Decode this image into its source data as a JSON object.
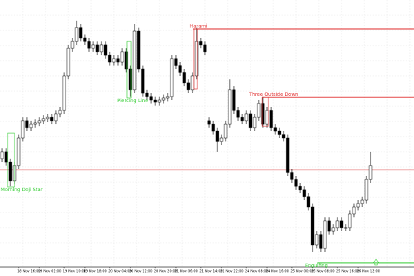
{
  "chart_data": {
    "type": "candlestick",
    "ylim": [
      0,
      385
    ],
    "grid": true,
    "candle_color": "#000000",
    "categories": [
      null,
      null,
      null,
      null,
      "18 Nov 16:00",
      null,
      null,
      null,
      null,
      "19 Nov 02:00",
      null,
      null,
      null,
      null,
      null,
      "19 Nov 10:00",
      null,
      null,
      null,
      null,
      "19 Nov 18:00",
      null,
      null,
      null,
      null,
      null,
      "20 Nov 04:00",
      null,
      null,
      null,
      null,
      "20 Nov 12:00",
      null,
      null,
      null,
      null,
      null,
      "20 Nov 20:00",
      null,
      null,
      null,
      null,
      "21 Nov 06:00",
      null,
      null,
      null,
      null,
      null,
      "21 Nov 14:00",
      null,
      null,
      null,
      null,
      "21 Nov 22:00",
      null,
      null,
      null,
      null,
      null,
      "24 Nov 08:00",
      null,
      null,
      null,
      null,
      "24 Nov 16:00",
      null,
      null,
      null,
      null,
      null,
      "25 Nov 00:00",
      null,
      null,
      null,
      null,
      "25 Nov 08:00",
      null,
      null,
      null,
      null,
      null,
      "25 Nov 16:00",
      null,
      null,
      null,
      null,
      "26 Nov 12:00",
      null,
      null,
      null
    ],
    "open": [
      155,
      165,
      150,
      123,
      145,
      185,
      210,
      200,
      205,
      207,
      210,
      213,
      215,
      210,
      220,
      225,
      275,
      315,
      325,
      345,
      330,
      325,
      315,
      320,
      310,
      320,
      305,
      295,
      300,
      295,
      310,
      285,
      255,
      340,
      285,
      250,
      245,
      240,
      237,
      240,
      243,
      245,
      300,
      290,
      280,
      265,
      255,
      275,
      325,
      320,
      210,
      205,
      195,
      180,
      185,
      205,
      255,
      225,
      215,
      210,
      220,
      200,
      215,
      235,
      205,
      225,
      200,
      195,
      190,
      185,
      135,
      125,
      115,
      110,
      100,
      85,
      30,
      45,
      25,
      65,
      50,
      55,
      65,
      55,
      55,
      75,
      85,
      90,
      95,
      125
    ],
    "high": [
      170,
      170,
      155,
      150,
      190,
      215,
      215,
      210,
      212,
      215,
      218,
      220,
      220,
      225,
      230,
      280,
      320,
      330,
      355,
      350,
      335,
      330,
      325,
      325,
      325,
      325,
      310,
      305,
      305,
      315,
      315,
      290,
      350,
      345,
      290,
      255,
      250,
      245,
      245,
      248,
      250,
      305,
      305,
      295,
      285,
      270,
      280,
      345,
      330,
      325,
      215,
      210,
      200,
      190,
      210,
      270,
      260,
      230,
      220,
      225,
      225,
      220,
      240,
      245,
      230,
      230,
      205,
      200,
      195,
      190,
      140,
      130,
      120,
      115,
      105,
      90,
      50,
      50,
      70,
      70,
      60,
      70,
      70,
      60,
      80,
      90,
      95,
      100,
      130,
      165
    ],
    "low": [
      150,
      145,
      115,
      118,
      140,
      180,
      195,
      195,
      200,
      202,
      205,
      208,
      205,
      205,
      215,
      220,
      270,
      310,
      320,
      325,
      320,
      310,
      310,
      305,
      305,
      300,
      290,
      290,
      290,
      290,
      280,
      245,
      250,
      280,
      245,
      240,
      235,
      232,
      232,
      235,
      238,
      240,
      285,
      275,
      260,
      250,
      250,
      270,
      315,
      305,
      200,
      190,
      165,
      175,
      180,
      200,
      220,
      210,
      205,
      205,
      195,
      195,
      210,
      200,
      200,
      195,
      190,
      185,
      180,
      130,
      120,
      110,
      105,
      95,
      80,
      20,
      25,
      20,
      20,
      45,
      45,
      50,
      50,
      50,
      50,
      70,
      80,
      85,
      90,
      120
    ],
    "close": [
      165,
      150,
      123,
      145,
      185,
      210,
      200,
      205,
      207,
      210,
      213,
      215,
      210,
      220,
      225,
      275,
      315,
      325,
      345,
      330,
      325,
      315,
      320,
      310,
      320,
      305,
      295,
      300,
      295,
      310,
      285,
      255,
      340,
      285,
      250,
      245,
      240,
      237,
      240,
      243,
      245,
      300,
      290,
      280,
      265,
      255,
      275,
      325,
      320,
      310,
      205,
      195,
      180,
      185,
      205,
      255,
      225,
      215,
      210,
      220,
      200,
      215,
      235,
      205,
      225,
      200,
      195,
      190,
      185,
      135,
      125,
      115,
      110,
      100,
      85,
      30,
      45,
      25,
      65,
      50,
      55,
      65,
      55,
      55,
      75,
      85,
      90,
      95,
      125,
      145
    ],
    "patterns": [
      {
        "name": "Morning Doji Star",
        "color": "#33cc33"
      },
      {
        "name": "Piercing Line",
        "color": "#33cc33"
      },
      {
        "name": "Harami",
        "color": "#e03030",
        "level": 343
      },
      {
        "name": "Three Outside Down",
        "color": "#e03030",
        "level": 244
      },
      {
        "name": "Engulfing",
        "color": "#33cc33",
        "level": 4
      }
    ],
    "reference_line": {
      "value": 139,
      "color": "#e06060"
    }
  }
}
